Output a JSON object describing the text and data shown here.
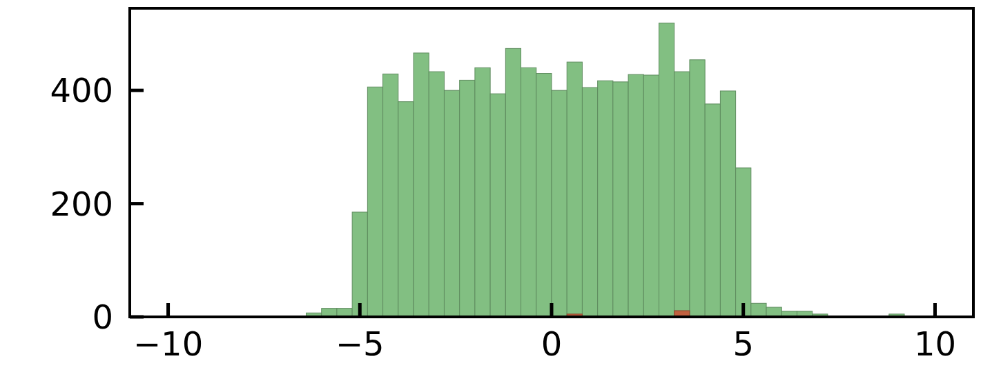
{
  "chart_data": {
    "type": "histogram",
    "bins": [
      -10,
      -9.6,
      -9.2,
      -8.8,
      -8.4,
      -8,
      -7.6,
      -7.2,
      -6.8,
      -6.4,
      -6,
      -5.6,
      -5.2,
      -4.8,
      -4.4,
      -4,
      -3.6,
      -3.2,
      -2.8,
      -2.4,
      -2,
      -1.6,
      -1.2,
      -0.8,
      -0.4,
      0,
      0.4,
      0.8,
      1.2,
      1.6,
      2,
      2.4,
      2.8,
      3.2,
      3.6,
      4,
      4.4,
      4.8,
      5.2,
      5.6,
      6,
      6.4,
      6.8,
      7.2,
      7.6,
      8,
      8.4,
      8.8,
      9.2,
      9.6,
      10
    ],
    "series": [
      {
        "color": "#82bf82",
        "values": [
          0,
          0,
          0,
          0,
          0,
          0,
          1,
          1,
          0,
          7,
          15,
          15,
          185,
          406,
          429,
          380,
          466,
          433,
          400,
          418,
          440,
          394,
          474,
          440,
          430,
          400,
          450,
          405,
          417,
          415,
          428,
          427,
          519,
          433,
          454,
          376,
          399,
          263,
          24,
          17,
          10,
          10,
          5,
          0,
          1,
          0,
          1,
          5,
          0,
          0
        ]
      },
      {
        "color": "#c0603f",
        "values": [
          0,
          0,
          0,
          0,
          0,
          0,
          0,
          0,
          0,
          0,
          0,
          0,
          0,
          0,
          0,
          1,
          0,
          0,
          1,
          1,
          0,
          0,
          0,
          0,
          0,
          1,
          5,
          0,
          1,
          0,
          0,
          0,
          0,
          11,
          1,
          0,
          0,
          0,
          0,
          0,
          0,
          0,
          0,
          0,
          0,
          0,
          0,
          0,
          0,
          0
        ]
      }
    ],
    "xlim": [
      -11,
      11
    ],
    "xticks": [
      {
        "value": -10,
        "label": "−10"
      },
      {
        "value": -5,
        "label": "−5"
      },
      {
        "value": 0,
        "label": "0"
      },
      {
        "value": 5,
        "label": "5"
      },
      {
        "value": 10,
        "label": "10"
      }
    ],
    "ylim": [
      0,
      545
    ],
    "yticks": [
      0,
      200,
      400
    ]
  }
}
